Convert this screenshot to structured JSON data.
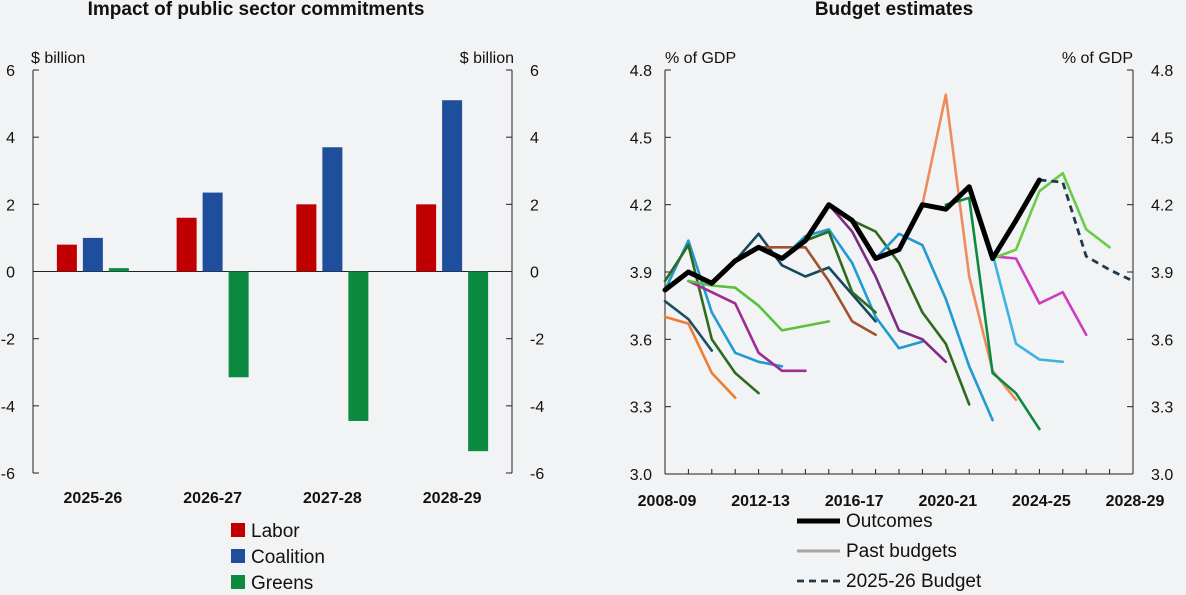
{
  "chart_data": [
    {
      "type": "bar",
      "title": "Impact of public sector commitments",
      "unit_left": "$ billion",
      "unit_right": "$ billion",
      "categories": [
        "2025-26",
        "2026-27",
        "2027-28",
        "2028-29"
      ],
      "ylim": [
        -6,
        6
      ],
      "yticks": [
        "6",
        "4",
        "2",
        "0",
        "-2",
        "-4",
        "-6"
      ],
      "series": [
        {
          "name": "Labor",
          "color": "#c00000",
          "values": [
            0.8,
            1.6,
            2.0,
            2.0
          ]
        },
        {
          "name": "Coalition",
          "color": "#1f4e9c",
          "values": [
            1.0,
            2.35,
            3.7,
            5.1
          ]
        },
        {
          "name": "Greens",
          "color": "#0c8a40",
          "values": [
            0.1,
            -3.15,
            -4.45,
            -5.35
          ]
        }
      ],
      "legend": [
        "Labor",
        "Coalition",
        "Greens"
      ],
      "legend_position": "bottom"
    },
    {
      "type": "line",
      "title": "Budget estimates",
      "unit_left": "% of GDP",
      "unit_right": "% of GDP",
      "ylim": [
        3.0,
        4.8
      ],
      "yticks": [
        "4.8",
        "4.5",
        "4.2",
        "3.9",
        "3.6",
        "3.3",
        "3.0"
      ],
      "xlim": [
        2008,
        2028
      ],
      "xticks": [
        "2008-09",
        "2012-13",
        "2016-17",
        "2020-21",
        "2024-25",
        "2028-29"
      ],
      "legend_position": "bottom",
      "series": [
        {
          "name": "Outcomes",
          "color": "#000000",
          "style": "outcome",
          "points": [
            [
              2008,
              3.82
            ],
            [
              2009,
              3.9
            ],
            [
              2010,
              3.85
            ],
            [
              2011,
              3.95
            ],
            [
              2012,
              4.01
            ],
            [
              2013,
              3.96
            ],
            [
              2014,
              4.04
            ],
            [
              2015,
              4.2
            ],
            [
              2016,
              4.13
            ],
            [
              2017,
              3.96
            ],
            [
              2018,
              4.0
            ],
            [
              2019,
              4.2
            ],
            [
              2020,
              4.18
            ],
            [
              2021,
              4.28
            ],
            [
              2022,
              3.96
            ],
            [
              2023,
              4.13
            ],
            [
              2024,
              4.31
            ]
          ]
        },
        {
          "name": "Past budgets",
          "color": "#a6a6a6",
          "style": "legend-only",
          "points": []
        },
        {
          "name": "2025-26 Budget",
          "color": "#1f3a4f",
          "style": "dashed",
          "points": [
            [
              2024,
              4.31
            ],
            [
              2025,
              4.3
            ],
            [
              2026,
              3.97
            ],
            [
              2027,
              3.91
            ],
            [
              2028,
              3.86
            ]
          ]
        },
        {
          "color": "#ed7d31",
          "style": "past",
          "points": [
            [
              2008,
              3.7
            ],
            [
              2009,
              3.67
            ],
            [
              2010,
              3.45
            ],
            [
              2011,
              3.34
            ]
          ]
        },
        {
          "color": "#1f9bd1",
          "style": "past",
          "points": [
            [
              2008,
              3.82
            ],
            [
              2009,
              4.04
            ],
            [
              2010,
              3.72
            ],
            [
              2011,
              3.54
            ],
            [
              2012,
              3.5
            ],
            [
              2013,
              3.48
            ]
          ]
        },
        {
          "color": "#2e6b1e",
          "style": "past",
          "points": [
            [
              2008,
              3.86
            ],
            [
              2009,
              4.02
            ],
            [
              2010,
              3.6
            ],
            [
              2011,
              3.45
            ],
            [
              2012,
              3.36
            ]
          ]
        },
        {
          "color": "#a02b93",
          "style": "past",
          "points": [
            [
              2009,
              3.86
            ],
            [
              2010,
              3.81
            ],
            [
              2011,
              3.76
            ],
            [
              2012,
              3.54
            ],
            [
              2013,
              3.46
            ],
            [
              2014,
              3.46
            ]
          ]
        },
        {
          "color": "#5bbf3f",
          "style": "past",
          "points": [
            [
              2009,
              3.86
            ],
            [
              2010,
              3.84
            ],
            [
              2011,
              3.83
            ],
            [
              2012,
              3.75
            ],
            [
              2013,
              3.64
            ],
            [
              2014,
              3.66
            ],
            [
              2015,
              3.68
            ]
          ]
        },
        {
          "color": "#1c4e63",
          "style": "past",
          "points": [
            [
              2008,
              3.77
            ],
            [
              2009,
              3.69
            ],
            [
              2010,
              3.55
            ]
          ]
        },
        {
          "color": "#14495e",
          "style": "past",
          "points": [
            [
              2011,
              3.95
            ],
            [
              2012,
              4.07
            ],
            [
              2013,
              3.93
            ],
            [
              2014,
              3.88
            ],
            [
              2015,
              3.92
            ],
            [
              2016,
              3.8
            ],
            [
              2017,
              3.68
            ]
          ]
        },
        {
          "color": "#a0522d",
          "style": "past",
          "points": [
            [
              2012,
              4.01
            ],
            [
              2013,
              4.01
            ],
            [
              2014,
              4.01
            ],
            [
              2015,
              3.86
            ],
            [
              2016,
              3.68
            ],
            [
              2017,
              3.62
            ]
          ]
        },
        {
          "color": "#1f9bd1",
          "style": "past",
          "points": [
            [
              2013,
              3.96
            ],
            [
              2014,
              4.06
            ],
            [
              2015,
              4.09
            ],
            [
              2016,
              3.94
            ],
            [
              2017,
              3.7
            ],
            [
              2018,
              3.56
            ],
            [
              2019,
              3.59
            ]
          ]
        },
        {
          "color": "#2e6b1e",
          "style": "past",
          "points": [
            [
              2014,
              4.04
            ],
            [
              2015,
              4.08
            ],
            [
              2016,
              3.81
            ],
            [
              2017,
              3.72
            ]
          ]
        },
        {
          "color": "#7b2c83",
          "style": "past",
          "points": [
            [
              2015,
              4.2
            ],
            [
              2016,
              4.08
            ],
            [
              2017,
              3.88
            ],
            [
              2018,
              3.64
            ],
            [
              2019,
              3.6
            ],
            [
              2020,
              3.5
            ]
          ]
        },
        {
          "color": "#2e6b1e",
          "style": "past",
          "points": [
            [
              2016,
              4.13
            ],
            [
              2017,
              4.08
            ],
            [
              2018,
              3.94
            ],
            [
              2019,
              3.72
            ],
            [
              2020,
              3.58
            ],
            [
              2021,
              3.31
            ]
          ]
        },
        {
          "color": "#1f9bd1",
          "style": "past",
          "points": [
            [
              2017,
              3.96
            ],
            [
              2018,
              4.07
            ],
            [
              2019,
              4.02
            ],
            [
              2020,
              3.78
            ],
            [
              2021,
              3.48
            ],
            [
              2022,
              3.24
            ]
          ]
        },
        {
          "color": "#ed8c5a",
          "style": "past",
          "points": [
            [
              2019,
              4.2
            ],
            [
              2020,
              4.69
            ],
            [
              2021,
              3.88
            ],
            [
              2022,
              3.46
            ],
            [
              2023,
              3.33
            ]
          ]
        },
        {
          "color": "#0c8a40",
          "style": "past",
          "points": [
            [
              2020,
              4.2
            ],
            [
              2021,
              4.23
            ],
            [
              2022,
              3.45
            ],
            [
              2023,
              3.36
            ],
            [
              2024,
              3.2
            ]
          ]
        },
        {
          "color": "#3bb3e3",
          "style": "past",
          "points": [
            [
              2021,
              4.28
            ],
            [
              2022,
              3.98
            ],
            [
              2023,
              3.58
            ],
            [
              2024,
              3.51
            ],
            [
              2025,
              3.5
            ]
          ]
        },
        {
          "color": "#cc3dbf",
          "style": "past",
          "points": [
            [
              2022,
              3.97
            ],
            [
              2023,
              3.96
            ],
            [
              2024,
              3.76
            ],
            [
              2025,
              3.81
            ],
            [
              2026,
              3.62
            ]
          ]
        },
        {
          "color": "#6acb48",
          "style": "past",
          "points": [
            [
              2022,
              3.96
            ],
            [
              2023,
              4.0
            ],
            [
              2024,
              4.26
            ],
            [
              2025,
              4.34
            ],
            [
              2026,
              4.09
            ],
            [
              2027,
              4.01
            ]
          ]
        }
      ]
    }
  ]
}
